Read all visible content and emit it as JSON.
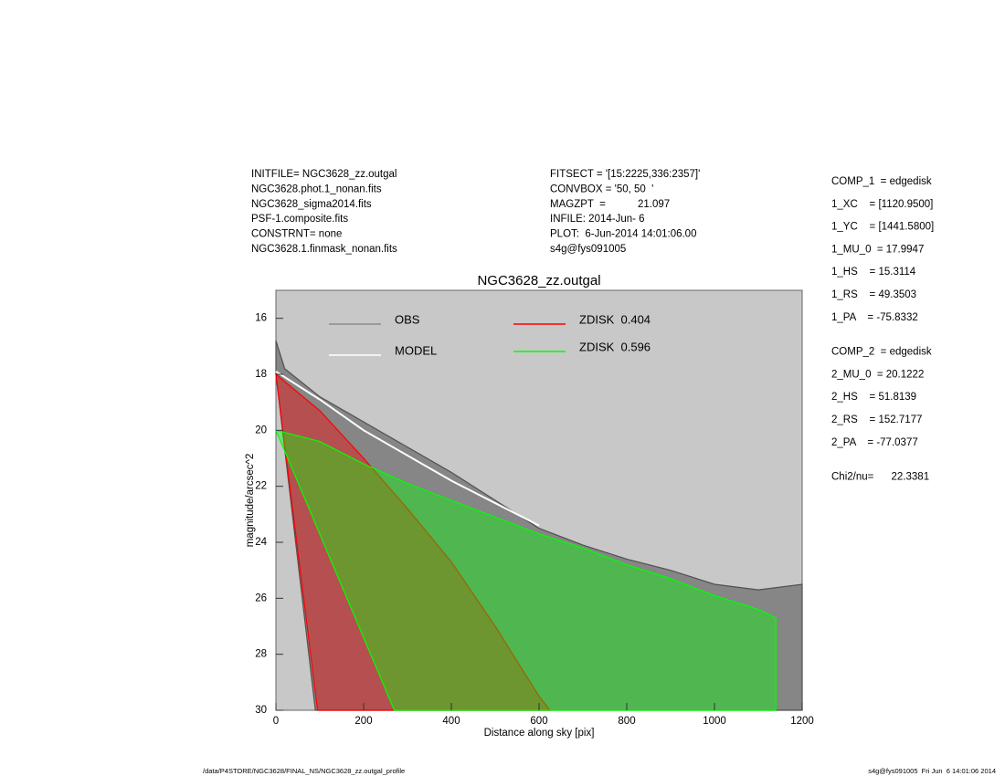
{
  "header": {
    "left": [
      "INITFILE= NGC3628_zz.outgal",
      "NGC3628.phot.1_nonan.fits",
      "NGC3628_sigma2014.fits",
      "PSF-1.composite.fits",
      "CONSTRNT= none",
      "NGC3628.1.finmask_nonan.fits"
    ],
    "middle": [
      "FITSECT = '[15:2225,336:2357]'",
      "CONVBOX = '50, 50  '",
      "MAGZPT  =           21.097",
      "INFILE: 2014-Jun- 6",
      "PLOT:  6-Jun-2014 14:01:06.00",
      "s4g@fys091005"
    ],
    "right": [
      [
        "COMP_1  = edgedisk",
        "1_XC    = [1120.9500]",
        "1_YC    = [1441.5800]",
        "1_MU_0  = 17.9947",
        "1_HS    = 15.3114",
        "1_RS    = 49.3503",
        "1_PA    = -75.8332"
      ],
      [
        "COMP_2  = edgedisk",
        "2_MU_0  = 20.1222",
        "2_HS    = 51.8139",
        "2_RS    = 152.7177",
        "2_PA    = -77.0377"
      ],
      [
        "Chi2/nu=      22.3381"
      ]
    ]
  },
  "footer": {
    "left": "/data/P4STORE/NGC3628/FINAL_NS/NGC3628_zz.outgal_profile",
    "right": "s4g@fys091005  Fri Jun  6 14:01:06 2014"
  },
  "chart_data": {
    "type": "area",
    "title": "NGC3628_zz.outgal",
    "x_label": "Distance along sky [pix]",
    "y_label": "magnitude/arcsec^2",
    "xlim": [
      0,
      1200
    ],
    "ylim": [
      30,
      15
    ],
    "xticks": [
      0,
      200,
      400,
      600,
      800,
      1000,
      1200
    ],
    "yticks": [
      16,
      18,
      20,
      22,
      24,
      26,
      28,
      30
    ],
    "series": [
      {
        "name": "OBS",
        "color": "#505050",
        "x": [
          0,
          20,
          100,
          200,
          300,
          400,
          500,
          600,
          700,
          800,
          900,
          1000,
          1100,
          1200
        ],
        "values": [
          16.8,
          17.8,
          18.8,
          19.7,
          20.6,
          21.5,
          22.5,
          23.5,
          24.1,
          24.6,
          25.0,
          25.5,
          25.7,
          25.5
        ],
        "faint_x": [
          0,
          90,
          1200
        ],
        "faint_values": [
          18,
          30,
          30
        ]
      },
      {
        "name": "MODEL",
        "color": "#ffffff",
        "x": [
          0,
          100,
          200,
          300,
          400,
          500,
          600
        ],
        "values": [
          17.9,
          18.9,
          20.0,
          20.9,
          21.8,
          22.6,
          23.4
        ]
      },
      {
        "name": "ZDISK  0.404",
        "color": "#ff0000",
        "x": [
          0,
          100,
          200,
          300,
          400,
          500,
          600,
          625
        ],
        "values": [
          18,
          19.3,
          21.0,
          22.8,
          24.7,
          27,
          29.5,
          30
        ],
        "faint_x": [
          0,
          95,
          625
        ],
        "faint_values": [
          18,
          30,
          30
        ]
      },
      {
        "name": "ZDISK  0.596",
        "color": "#00ff00",
        "x": [
          0,
          100,
          200,
          300,
          400,
          500,
          600,
          700,
          800,
          900,
          1000,
          1100,
          1140
        ],
        "values": [
          20,
          20.4,
          21.2,
          21.9,
          22.5,
          23.1,
          23.7,
          24.2,
          24.8,
          25.3,
          25.9,
          26.4,
          26.7
        ],
        "faint_x": [
          0,
          270,
          1140
        ],
        "faint_values": [
          20,
          30,
          30
        ]
      }
    ]
  }
}
